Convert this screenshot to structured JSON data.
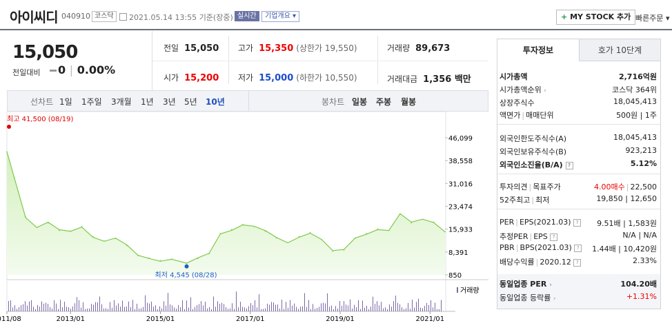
{
  "header": {
    "name": "아이씨디",
    "code": "040910",
    "market": "코스닥",
    "datetime": "2021.05.14 13:55",
    "basis": "기준(장중)",
    "live_badge": "실시간",
    "company_overview": "기업개요 ▾",
    "mystock_plus": "+",
    "mystock": "MY STOCK 추가",
    "quick_order": "빠른주문 ▾"
  },
  "price": {
    "current": "15,050",
    "change_label": "전일대비",
    "change_value": "0",
    "change_rate": "0.00%"
  },
  "quote": {
    "prev_close_label": "전일",
    "prev_close": "15,050",
    "high_label": "고가",
    "high": "15,350",
    "upper_limit": "(상한가 19,550)",
    "volume_label": "거래량",
    "volume": "89,673",
    "open_label": "시가",
    "open": "15,200",
    "low_label": "저가",
    "low": "15,000",
    "lower_limit": "(하한가 10,550)",
    "amount_label": "거래대금",
    "amount": "1,356 백만"
  },
  "chart_tabs": {
    "line_label": "선차트",
    "periods": [
      "1일",
      "1주일",
      "3개월",
      "1년",
      "3년",
      "5년",
      "10년"
    ],
    "active_period": "10년",
    "candle_label": "봉차트",
    "candles": [
      "일봉",
      "주봉",
      "월봉"
    ]
  },
  "chart_data": {
    "type": "area",
    "x_ticks": [
      "2011/08",
      "2013/01",
      "2015/01",
      "2017/01",
      "2019/01",
      "2021/01"
    ],
    "y_ticks": [
      46099,
      38558,
      31016,
      23474,
      15933,
      8391,
      850
    ],
    "ylim": [
      850,
      46099
    ],
    "max_label": "최고 41,500 (08/19)",
    "min_label": "최저 4,545 (08/28)",
    "volume_legend": "거래량",
    "x": [
      "2011/08",
      "2011/10",
      "2012/01",
      "2012/04",
      "2012/07",
      "2012/10",
      "2013/01",
      "2013/04",
      "2013/07",
      "2013/10",
      "2014/01",
      "2014/04",
      "2014/07",
      "2014/10",
      "2015/01",
      "2015/04",
      "2015/08",
      "2015/11",
      "2016/02",
      "2016/05",
      "2016/08",
      "2016/11",
      "2017/02",
      "2017/05",
      "2017/08",
      "2017/11",
      "2018/02",
      "2018/05",
      "2018/08",
      "2018/11",
      "2019/02",
      "2019/05",
      "2019/08",
      "2019/11",
      "2020/02",
      "2020/05",
      "2020/08",
      "2020/11",
      "2021/02",
      "2021/05"
    ],
    "values": [
      41500,
      33000,
      20000,
      16500,
      18000,
      15500,
      15200,
      16800,
      13500,
      12000,
      12800,
      10500,
      7200,
      6400,
      5600,
      6100,
      4545,
      6200,
      7800,
      14500,
      15800,
      17500,
      16800,
      15200,
      13000,
      11500,
      13500,
      14800,
      12500,
      8600,
      9000,
      13000,
      14500,
      16000,
      15500,
      20800,
      18000,
      19200,
      18300,
      15050
    ],
    "colors": {
      "line": "#7ec94b",
      "fill_top": "#d4f0bd",
      "fill_bottom": "#f3fbee",
      "volume": "#7a68a6",
      "max": "#e00000",
      "min": "#1c5ec9"
    }
  },
  "right_panel": {
    "tab_invest": "투자정보",
    "tab_hoga": "호가 10단계",
    "market_cap_label": "시가총액",
    "market_cap": "2,716억원",
    "market_cap_rank_label": "시가총액순위",
    "market_cap_rank": "코스닥 364위",
    "shares_label": "상장주식수",
    "shares": "18,045,413",
    "face_label": "액면가",
    "unit_label": "매매단위",
    "face_unit": "500원 | 1주",
    "foreign_limit_label": "외국인한도주식수(A)",
    "foreign_limit": "18,045,413",
    "foreign_hold_label": "외국인보유주식수(B)",
    "foreign_hold": "923,213",
    "foreign_ratio_label": "외국인소진율(B/A)",
    "foreign_ratio": "5.12%",
    "opinion_label": "투자의견",
    "target_label": "목표주가",
    "opinion": "4.00매수",
    "target": "22,500",
    "week52_label": "52주최고",
    "week52_low_label": "최저",
    "week52": "19,850 | 12,650",
    "per_label": "PER",
    "eps_label": "EPS(2021.03)",
    "per_eps": "9.51배 | 1,583원",
    "est_per_label": "추정PER",
    "est_eps_label": "EPS",
    "est_per_eps": "N/A | N/A",
    "pbr_label": "PBR",
    "bps_label": "BPS(2021.03)",
    "pbr_bps": "1.44배 | 10,420원",
    "div_label": "배당수익률",
    "div_date": "2020.12",
    "div": "2.33%",
    "ind_per_label": "동일업종 PER",
    "ind_per": "104.20배",
    "ind_rate_label": "동일업종 등락률",
    "ind_rate": "+1.31%"
  }
}
